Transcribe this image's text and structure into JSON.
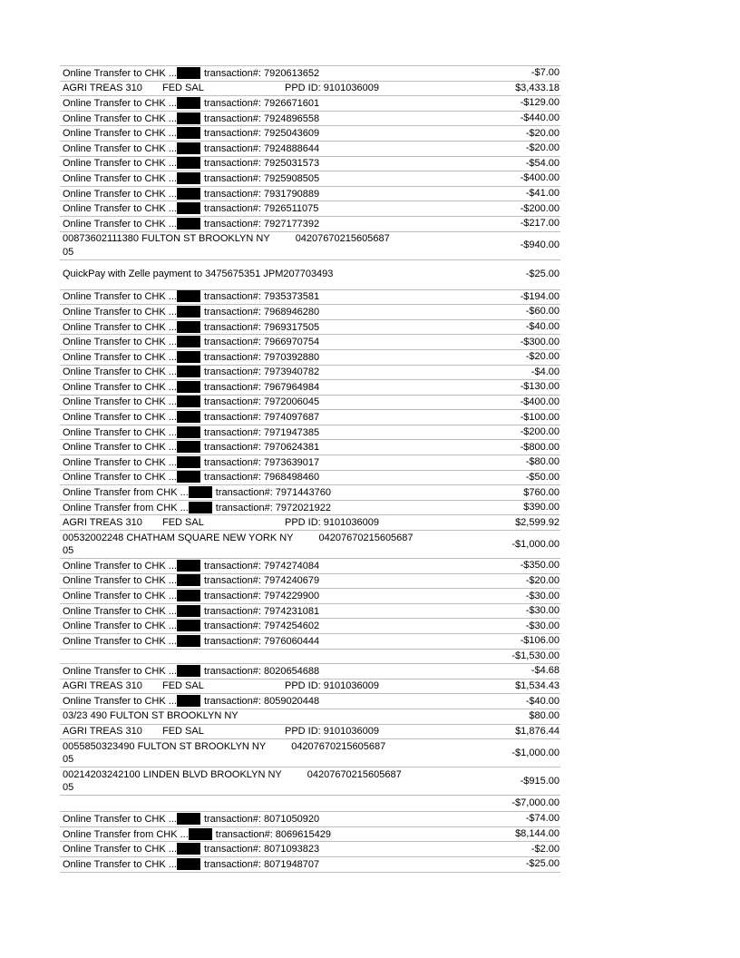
{
  "document": {
    "kind": "bank-statement-transactions-page"
  },
  "colors": {
    "background": "#ffffff",
    "text": "#000000",
    "divider": "#bfbfbf",
    "redaction": "#000000"
  },
  "table": {
    "rows": [
      {
        "kind": "transfer",
        "pre": "Online Transfer to CHK ...",
        "post": "transaction#: 7920613652",
        "amount": "-$7.00"
      },
      {
        "kind": "ppd",
        "cells": [
          "AGRI TREAS 310",
          "FED SAL",
          "PPD ID: 9101036009"
        ],
        "amount": "$3,433.18"
      },
      {
        "kind": "transfer",
        "pre": "Online Transfer to CHK ...",
        "post": "transaction#: 7926671601",
        "amount": "-$129.00"
      },
      {
        "kind": "transfer",
        "pre": "Online Transfer to CHK ...",
        "post": "transaction#: 7924896558",
        "amount": "-$440.00"
      },
      {
        "kind": "transfer",
        "pre": "Online Transfer to CHK ...",
        "post": "transaction#: 7925043609",
        "amount": "-$20.00"
      },
      {
        "kind": "transfer",
        "pre": "Online Transfer to CHK ...",
        "post": "transaction#: 7924888644",
        "amount": "-$20.00"
      },
      {
        "kind": "transfer",
        "pre": "Online Transfer to CHK ...",
        "post": "transaction#: 7925031573",
        "amount": "-$54.00"
      },
      {
        "kind": "transfer",
        "pre": "Online Transfer to CHK ...",
        "post": "transaction#: 7925908505",
        "amount": "-$400.00"
      },
      {
        "kind": "transfer",
        "pre": "Online Transfer to CHK ...",
        "post": "transaction#: 7931790889",
        "amount": "-$41.00"
      },
      {
        "kind": "transfer",
        "pre": "Online Transfer to CHK ...",
        "post": "transaction#: 7926511075",
        "amount": "-$200.00"
      },
      {
        "kind": "transfer",
        "pre": "Online Transfer to CHK ...",
        "post": "transaction#: 7927177392",
        "amount": "-$217.00"
      },
      {
        "kind": "twoline",
        "line1": "00873602111380 FULTON ST BROOKLYN NY",
        "ref": "04207670215605687",
        "line2": "05",
        "amount": "-$940.00"
      },
      {
        "kind": "plain",
        "variant": "tall",
        "text": "QuickPay with Zelle payment to 3475675351 JPM207703493",
        "amount": "-$25.00"
      },
      {
        "kind": "transfer",
        "pre": "Online Transfer to CHK ...",
        "post": "transaction#: 7935373581",
        "amount": "-$194.00"
      },
      {
        "kind": "transfer",
        "pre": "Online Transfer to CHK ...",
        "post": "transaction#: 7968946280",
        "amount": "-$60.00"
      },
      {
        "kind": "transfer",
        "pre": "Online Transfer to CHK ...",
        "post": "transaction#: 7969317505",
        "amount": "-$40.00"
      },
      {
        "kind": "transfer",
        "pre": "Online Transfer to CHK ...",
        "post": "transaction#: 7966970754",
        "amount": "-$300.00"
      },
      {
        "kind": "transfer",
        "pre": "Online Transfer to CHK ...",
        "post": "transaction#: 7970392880",
        "amount": "-$20.00"
      },
      {
        "kind": "transfer",
        "pre": "Online Transfer to CHK ...",
        "post": "transaction#: 7973940782",
        "amount": "-$4.00"
      },
      {
        "kind": "transfer",
        "pre": "Online Transfer to CHK ...",
        "post": "transaction#: 7967964984",
        "amount": "-$130.00"
      },
      {
        "kind": "transfer",
        "pre": "Online Transfer to CHK ...",
        "post": "transaction#: 7972006045",
        "amount": "-$400.00"
      },
      {
        "kind": "transfer",
        "pre": "Online Transfer to CHK ...",
        "post": "transaction#: 7974097687",
        "amount": "-$100.00"
      },
      {
        "kind": "transfer",
        "pre": "Online Transfer to CHK ...",
        "post": "transaction#: 7971947385",
        "amount": "-$200.00"
      },
      {
        "kind": "transfer",
        "pre": "Online Transfer to CHK ...",
        "post": "transaction#: 7970624381",
        "amount": "-$800.00"
      },
      {
        "kind": "transfer",
        "pre": "Online Transfer to CHK ...",
        "post": "transaction#: 7973639017",
        "amount": "-$80.00"
      },
      {
        "kind": "transfer",
        "pre": "Online Transfer to CHK ...",
        "post": "transaction#: 7968498460",
        "amount": "-$50.00"
      },
      {
        "kind": "transfer",
        "pre": "Online Transfer from CHK ...",
        "post": "transaction#: 7971443760",
        "amount": "$760.00"
      },
      {
        "kind": "transfer",
        "pre": "Online Transfer from CHK ...",
        "post": "transaction#: 7972021922",
        "amount": "$390.00"
      },
      {
        "kind": "ppd",
        "cells": [
          "AGRI TREAS 310",
          "FED SAL",
          "PPD ID: 9101036009"
        ],
        "amount": "$2,599.92"
      },
      {
        "kind": "twoline",
        "line1": "00532002248 CHATHAM SQUARE NEW YORK NY",
        "ref": "04207670215605687",
        "line2": "05",
        "amount": "-$1,000.00"
      },
      {
        "kind": "transfer",
        "pre": "Online Transfer to CHK ...",
        "post": "transaction#: 7974274084",
        "amount": "-$350.00"
      },
      {
        "kind": "transfer",
        "pre": "Online Transfer to CHK ...",
        "post": "transaction#: 7974240679",
        "amount": "-$20.00"
      },
      {
        "kind": "transfer",
        "pre": "Online Transfer to CHK ...",
        "post": "transaction#: 7974229900",
        "amount": "-$30.00"
      },
      {
        "kind": "transfer",
        "pre": "Online Transfer to CHK ...",
        "post": "transaction#: 7974231081",
        "amount": "-$30.00"
      },
      {
        "kind": "transfer",
        "pre": "Online Transfer to CHK ...",
        "post": "transaction#: 7974254602",
        "amount": "-$30.00"
      },
      {
        "kind": "transfer",
        "pre": "Online Transfer to CHK ...",
        "post": "transaction#: 7976060444",
        "amount": "-$106.00"
      },
      {
        "kind": "subtotal",
        "amount": "-$1,530.00"
      },
      {
        "kind": "transfer",
        "pre": "Online Transfer to CHK ...",
        "post": "transaction#: 8020654688",
        "amount": "-$4.68"
      },
      {
        "kind": "ppd",
        "cells": [
          "AGRI TREAS 310",
          "FED SAL",
          "PPD ID: 9101036009"
        ],
        "amount": "$1,534.43"
      },
      {
        "kind": "transfer",
        "pre": "Online Transfer to CHK ...",
        "post": "transaction#: 8059020448",
        "amount": "-$40.00"
      },
      {
        "kind": "plain",
        "text": "03/23 490 FULTON ST BROOKLYN NY",
        "amount": "$80.00"
      },
      {
        "kind": "ppd",
        "cells": [
          "AGRI TREAS 310",
          "FED SAL",
          "PPD ID: 9101036009"
        ],
        "amount": "$1,876.44"
      },
      {
        "kind": "twoline",
        "line1": "0055850323490 FULTON ST BROOKLYN NY",
        "ref": "04207670215605687",
        "line2": "05",
        "amount": "-$1,000.00"
      },
      {
        "kind": "twoline",
        "line1": "00214203242100 LINDEN BLVD BROOKLYN NY",
        "ref": "04207670215605687",
        "line2": "05",
        "amount": "-$915.00"
      },
      {
        "kind": "subtotal",
        "variant": "tall",
        "amount": "-$7,000.00"
      },
      {
        "kind": "transfer",
        "pre": "Online Transfer to CHK ...",
        "post": "transaction#: 8071050920",
        "amount": "-$74.00"
      },
      {
        "kind": "transfer",
        "pre": "Online Transfer from CHK ...",
        "post": "transaction#: 8069615429",
        "amount": "$8,144.00"
      },
      {
        "kind": "transfer",
        "pre": "Online Transfer to CHK ...",
        "post": "transaction#: 8071093823",
        "amount": "-$2.00"
      },
      {
        "kind": "transfer",
        "pre": "Online Transfer to CHK ...",
        "post": "transaction#: 8071948707",
        "amount": "-$25.00"
      }
    ]
  }
}
